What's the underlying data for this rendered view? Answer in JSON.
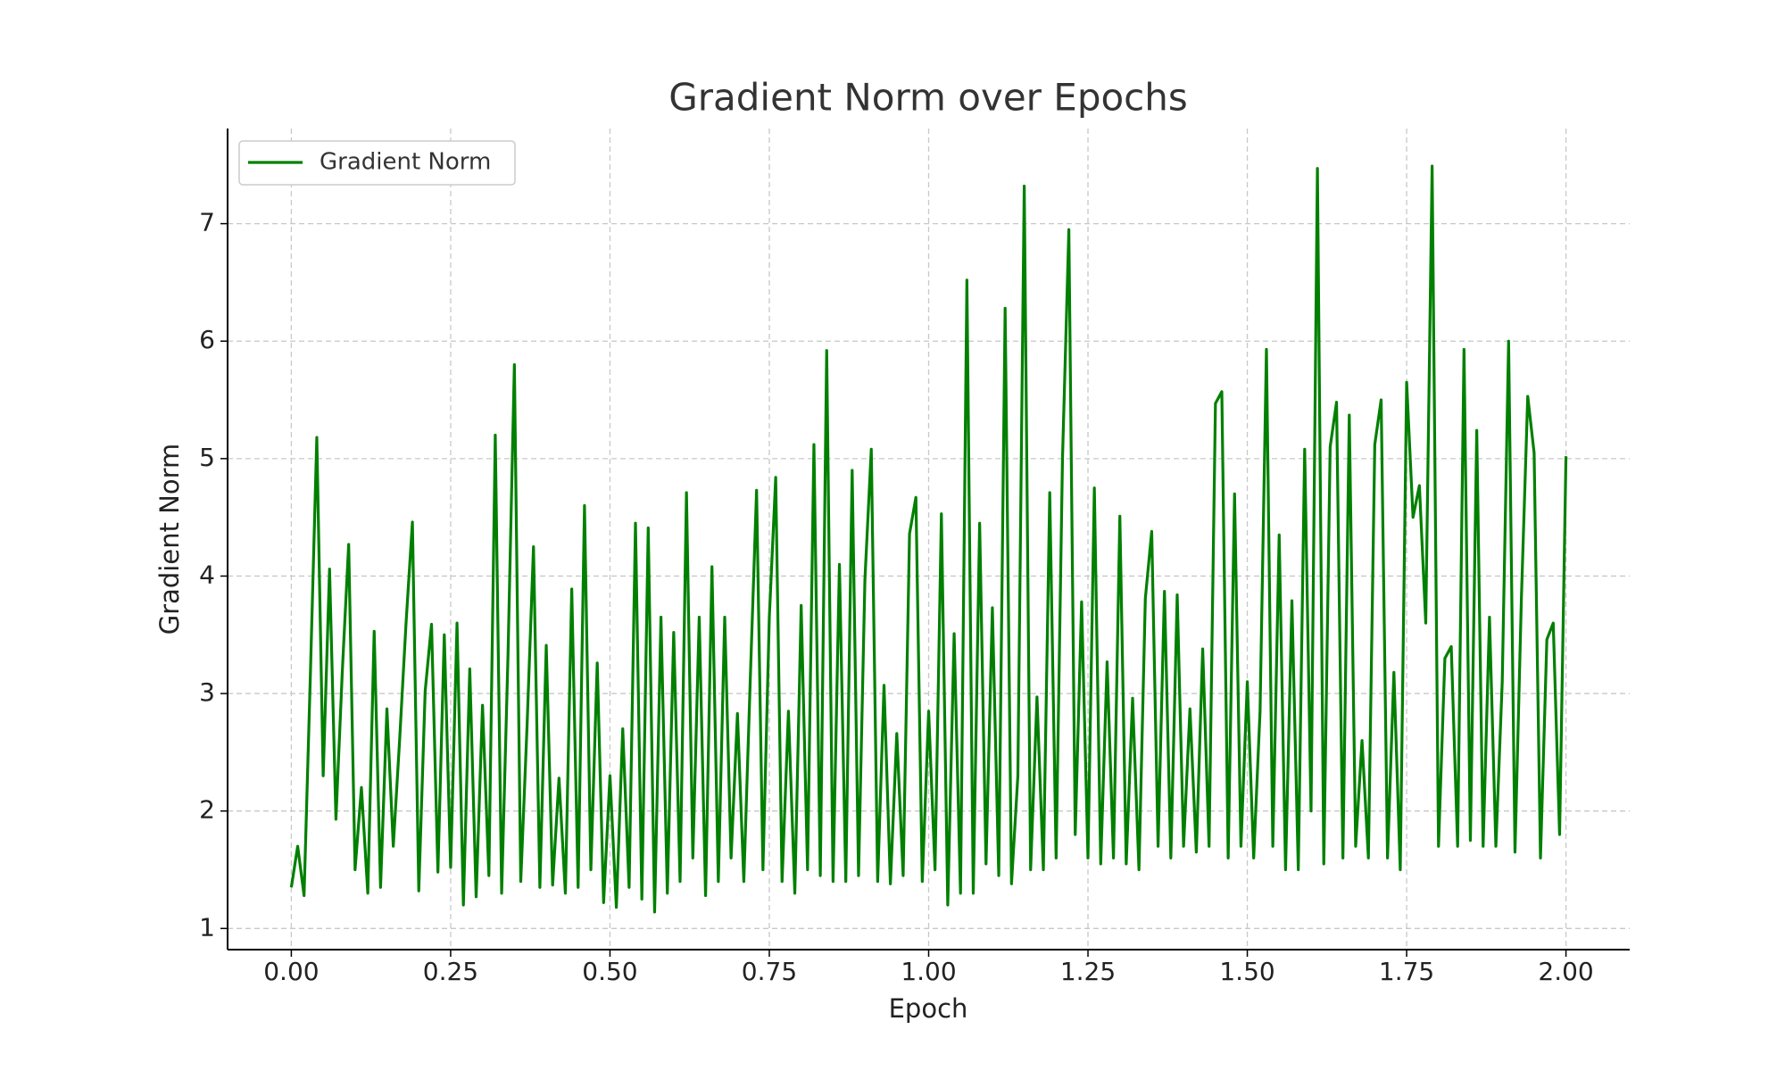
{
  "chart_data": {
    "type": "line",
    "title": "Gradient Norm over Epochs",
    "x_label": "Epoch",
    "y_label": "Gradient Norm",
    "x": [
      0,
      0.01,
      0.02,
      0.03,
      0.04,
      0.05,
      0.06,
      0.07,
      0.08,
      0.09,
      0.1,
      0.11,
      0.12,
      0.13,
      0.14,
      0.15,
      0.16,
      0.17,
      0.18,
      0.19,
      0.2,
      0.21,
      0.22,
      0.23,
      0.24,
      0.25,
      0.26,
      0.27,
      0.28,
      0.29,
      0.3,
      0.31,
      0.32,
      0.33,
      0.34,
      0.35,
      0.36,
      0.37,
      0.38,
      0.39,
      0.4,
      0.41,
      0.42,
      0.43,
      0.44,
      0.45,
      0.46,
      0.47,
      0.48,
      0.49,
      0.5,
      0.51,
      0.52,
      0.53,
      0.54,
      0.55,
      0.56,
      0.57,
      0.58,
      0.59,
      0.6,
      0.61,
      0.62,
      0.63,
      0.64,
      0.65,
      0.66,
      0.67,
      0.68,
      0.69,
      0.7,
      0.71,
      0.72,
      0.73,
      0.74,
      0.75,
      0.76,
      0.77,
      0.78,
      0.79,
      0.8,
      0.81,
      0.82,
      0.83,
      0.84,
      0.85,
      0.86,
      0.87,
      0.88,
      0.89,
      0.9,
      0.91,
      0.92,
      0.93,
      0.94,
      0.95,
      0.96,
      0.97,
      0.98,
      0.99,
      1,
      1.01,
      1.02,
      1.03,
      1.04,
      1.05,
      1.06,
      1.07,
      1.08,
      1.09,
      1.1,
      1.11,
      1.12,
      1.13,
      1.14,
      1.15,
      1.16,
      1.17,
      1.18,
      1.19,
      1.2,
      1.21,
      1.22,
      1.23,
      1.24,
      1.25,
      1.26,
      1.27,
      1.28,
      1.29,
      1.3,
      1.31,
      1.32,
      1.33,
      1.34,
      1.35,
      1.36,
      1.37,
      1.38,
      1.39,
      1.4,
      1.41,
      1.42,
      1.43,
      1.44,
      1.45,
      1.46,
      1.47,
      1.48,
      1.49,
      1.5,
      1.51,
      1.52,
      1.53,
      1.54,
      1.55,
      1.56,
      1.57,
      1.58,
      1.59,
      1.6,
      1.61,
      1.62,
      1.63,
      1.64,
      1.65,
      1.66,
      1.67,
      1.68,
      1.69,
      1.7,
      1.71,
      1.72,
      1.73,
      1.74,
      1.75,
      1.76,
      1.77,
      1.78,
      1.79,
      1.8,
      1.81,
      1.82,
      1.83,
      1.84,
      1.85,
      1.86,
      1.87,
      1.88,
      1.89,
      1.9,
      1.91,
      1.92,
      1.93,
      1.94,
      1.95,
      1.96,
      1.97,
      1.98,
      1.99,
      2
    ],
    "series": [
      {
        "name": "Gradient Norm",
        "color": "#008000",
        "values": [
          1.35,
          1.7,
          1.28,
          3.18,
          5.18,
          2.3,
          4.06,
          1.93,
          3.19,
          4.27,
          1.5,
          2.2,
          1.3,
          3.53,
          1.35,
          2.87,
          1.7,
          2.61,
          3.6,
          4.46,
          1.32,
          3.02,
          3.59,
          1.48,
          3.5,
          1.52,
          3.6,
          1.2,
          3.21,
          1.27,
          2.9,
          1.45,
          5.2,
          1.3,
          3.33,
          5.8,
          1.4,
          2.74,
          4.25,
          1.35,
          3.41,
          1.37,
          2.28,
          1.3,
          3.89,
          1.35,
          4.6,
          1.5,
          3.26,
          1.22,
          2.3,
          1.18,
          2.7,
          1.35,
          4.45,
          1.25,
          4.41,
          1.14,
          3.65,
          1.3,
          3.52,
          1.4,
          4.71,
          1.6,
          3.65,
          1.28,
          4.08,
          1.4,
          3.65,
          1.6,
          2.83,
          1.4,
          3.1,
          4.73,
          1.5,
          3.65,
          4.84,
          1.4,
          2.85,
          1.3,
          3.75,
          1.5,
          5.12,
          1.45,
          5.92,
          1.4,
          4.1,
          1.4,
          4.9,
          1.45,
          3.97,
          5.08,
          1.4,
          3.07,
          1.38,
          2.66,
          1.45,
          4.36,
          4.67,
          1.4,
          2.85,
          1.5,
          4.53,
          1.2,
          3.51,
          1.3,
          6.52,
          1.3,
          4.45,
          1.55,
          3.73,
          1.45,
          6.28,
          1.38,
          2.3,
          7.32,
          1.5,
          2.97,
          1.5,
          4.71,
          1.6,
          5.0,
          6.95,
          1.8,
          3.78,
          1.6,
          4.75,
          1.55,
          3.27,
          1.6,
          4.51,
          1.55,
          2.96,
          1.5,
          3.81,
          4.38,
          1.7,
          3.87,
          1.6,
          3.84,
          1.7,
          2.87,
          1.65,
          3.38,
          1.7,
          5.47,
          5.57,
          1.6,
          4.7,
          1.7,
          3.1,
          1.6,
          2.85,
          5.93,
          1.7,
          4.35,
          1.5,
          3.79,
          1.5,
          5.08,
          2.0,
          7.47,
          1.55,
          5.1,
          5.48,
          1.6,
          5.37,
          1.7,
          2.6,
          1.6,
          5.12,
          5.5,
          1.6,
          3.18,
          1.5,
          5.65,
          4.5,
          4.77,
          3.6,
          7.49,
          1.7,
          3.3,
          3.4,
          1.7,
          5.93,
          1.75,
          5.24,
          1.7,
          3.65,
          1.7,
          3.1,
          6.0,
          1.65,
          3.8,
          5.53,
          5.05,
          1.6,
          3.46,
          3.6,
          1.8,
          5.02
        ]
      }
    ],
    "xlim": [
      -0.1,
      2.1
    ],
    "ylim": [
      0.82,
      7.81
    ],
    "xticks": [
      {
        "value": 0,
        "label": "0.00"
      },
      {
        "value": 0.25,
        "label": "0.25"
      },
      {
        "value": 0.5,
        "label": "0.50"
      },
      {
        "value": 0.75,
        "label": "0.75"
      },
      {
        "value": 1,
        "label": "1.00"
      },
      {
        "value": 1.25,
        "label": "1.25"
      },
      {
        "value": 1.5,
        "label": "1.50"
      },
      {
        "value": 1.75,
        "label": "1.75"
      },
      {
        "value": 2,
        "label": "2.00"
      }
    ],
    "yticks": [
      1,
      2,
      3,
      4,
      5,
      6,
      7
    ],
    "grid": true,
    "legend": "upper-left"
  }
}
